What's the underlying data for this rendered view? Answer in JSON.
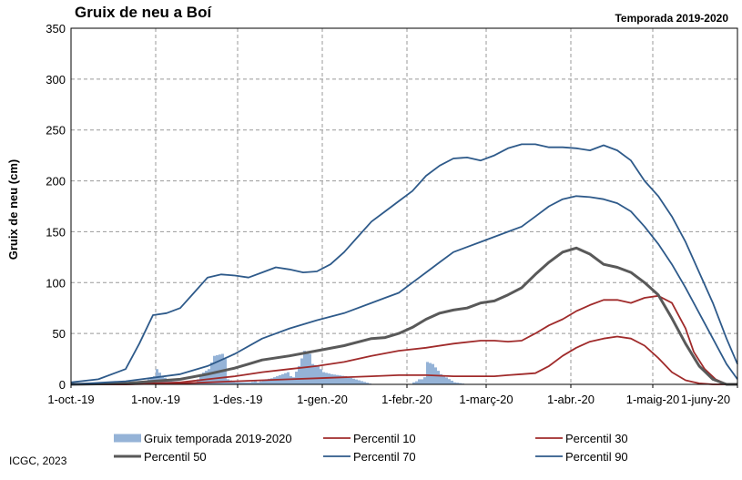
{
  "title": "Gruix de neu a Boí",
  "season": "Temporada 2019-2020",
  "credit": "ICGC, 2023",
  "chart_data": {
    "type": "bar",
    "ylabel": "Gruix de neu (cm)",
    "xlabel": "",
    "ylim": [
      0,
      350
    ],
    "yticks": [
      0,
      50,
      100,
      150,
      200,
      250,
      300,
      350
    ],
    "xlim": [
      0,
      244
    ],
    "xticks": [
      {
        "day": 0,
        "label": "1-oct.-19"
      },
      {
        "day": 31,
        "label": "1-nov.-19"
      },
      {
        "day": 61,
        "label": "1-des.-19"
      },
      {
        "day": 92,
        "label": "1-gen.-20"
      },
      {
        "day": 123,
        "label": "1-febr.-20"
      },
      {
        "day": 152,
        "label": "1-març-20"
      },
      {
        "day": 183,
        "label": "1-abr.-20"
      },
      {
        "day": 213,
        "label": "1-maig-20"
      },
      {
        "day": 244,
        "label": "1-juny-20"
      }
    ],
    "grid": true,
    "legend_position": "bottom",
    "bar_color": "#95b3d7",
    "snow_depth": {
      "name": "Gruix temporada 2019-2020",
      "x": [
        0,
        5,
        10,
        15,
        18,
        19,
        20,
        21,
        22,
        24,
        26,
        28,
        30,
        31,
        33,
        35,
        37,
        39,
        41,
        42,
        43,
        45,
        46,
        47,
        50,
        52,
        55,
        56,
        57,
        60,
        62,
        65,
        67,
        68,
        69,
        70,
        71,
        73,
        75,
        77,
        79,
        80,
        81,
        83,
        85,
        87,
        88,
        90,
        92,
        95,
        100,
        105,
        110,
        115,
        119,
        120,
        121,
        122,
        123,
        124,
        125,
        126,
        127,
        128,
        129,
        130,
        132,
        135,
        140,
        145,
        148,
        150,
        152,
        155,
        160,
        165,
        168,
        170,
        173,
        174,
        175,
        176,
        177,
        178,
        179,
        180,
        181,
        182,
        183,
        185,
        186,
        187,
        188,
        190,
        191,
        192,
        193,
        194,
        195,
        196,
        197,
        198,
        199,
        200,
        202,
        205,
        207,
        208,
        210,
        212,
        214,
        216,
        218,
        220,
        222,
        225,
        226,
        228,
        229,
        230,
        231,
        232,
        233,
        234,
        235,
        236,
        237,
        238,
        239,
        240,
        241,
        242,
        243,
        244
      ],
      "values": [
        0,
        0,
        0,
        0,
        2,
        3,
        2,
        1,
        0,
        0,
        1,
        5,
        8,
        15,
        8,
        5,
        3,
        3,
        1,
        2,
        1,
        2,
        5,
        10,
        15,
        28,
        30,
        25,
        5,
        2,
        2,
        2,
        3,
        2,
        3,
        4,
        5,
        6,
        8,
        10,
        12,
        8,
        7,
        18,
        33,
        30,
        20,
        18,
        12,
        10,
        8,
        4,
        0,
        0,
        0,
        0,
        0,
        0,
        0,
        0,
        2,
        3,
        5,
        5,
        7,
        22,
        20,
        10,
        2,
        0,
        0,
        0,
        0,
        0,
        0,
        0,
        0,
        0,
        0,
        0,
        0,
        0,
        0,
        0,
        0,
        0,
        0,
        0,
        0,
        0,
        0,
        0,
        0,
        0,
        0,
        0,
        0,
        0,
        0,
        0,
        0,
        0,
        0,
        0,
        0,
        0,
        0,
        0,
        0,
        0,
        0,
        0,
        0,
        0,
        0,
        0,
        0,
        0,
        0,
        0,
        0,
        0,
        0,
        0,
        0,
        0,
        0,
        0,
        0,
        0,
        0,
        0,
        0,
        0
      ]
    },
    "series": [
      {
        "name": "Percentil 10",
        "color": "#a02b2b",
        "width": 1.8,
        "x": [
          0,
          20,
          40,
          50,
          60,
          70,
          80,
          90,
          100,
          110,
          120,
          130,
          140,
          150,
          155,
          160,
          165,
          170,
          175,
          180,
          185,
          190,
          195,
          200,
          205,
          210,
          215,
          220,
          225,
          230,
          235,
          240,
          244
        ],
        "values": [
          0,
          0,
          1,
          2,
          3,
          4,
          5,
          6,
          7,
          8,
          9,
          9,
          8,
          8,
          8,
          9,
          10,
          11,
          18,
          28,
          36,
          42,
          45,
          47,
          45,
          38,
          26,
          12,
          4,
          1,
          0,
          0,
          0
        ]
      },
      {
        "name": "Percentil 30",
        "color": "#a02b2b",
        "width": 1.8,
        "x": [
          0,
          20,
          40,
          50,
          60,
          70,
          80,
          90,
          100,
          110,
          120,
          130,
          140,
          150,
          155,
          160,
          165,
          170,
          175,
          180,
          185,
          190,
          195,
          200,
          205,
          210,
          215,
          220,
          225,
          228,
          232,
          236,
          240,
          244
        ],
        "values": [
          0,
          0,
          2,
          5,
          8,
          12,
          15,
          18,
          22,
          28,
          33,
          36,
          40,
          43,
          43,
          42,
          43,
          50,
          58,
          64,
          72,
          78,
          83,
          83,
          80,
          85,
          87,
          80,
          55,
          32,
          15,
          5,
          0,
          0
        ]
      },
      {
        "name": "Percentil 50",
        "color": "#595959",
        "width": 3,
        "x": [
          0,
          20,
          40,
          50,
          60,
          65,
          70,
          80,
          90,
          100,
          110,
          115,
          120,
          125,
          130,
          135,
          140,
          145,
          150,
          155,
          160,
          165,
          170,
          175,
          180,
          185,
          190,
          195,
          200,
          205,
          210,
          215,
          220,
          225,
          230,
          235,
          240,
          244
        ],
        "values": [
          0,
          1,
          5,
          10,
          16,
          20,
          24,
          28,
          33,
          38,
          45,
          46,
          50,
          56,
          64,
          70,
          73,
          75,
          80,
          82,
          88,
          95,
          108,
          120,
          130,
          134,
          128,
          118,
          115,
          110,
          100,
          88,
          65,
          40,
          18,
          5,
          0,
          0
        ]
      },
      {
        "name": "Percentil 70",
        "color": "#2e5a8a",
        "width": 1.8,
        "x": [
          0,
          20,
          40,
          50,
          60,
          70,
          80,
          90,
          100,
          110,
          115,
          120,
          125,
          130,
          135,
          140,
          145,
          150,
          155,
          160,
          165,
          170,
          175,
          180,
          185,
          190,
          195,
          200,
          205,
          210,
          215,
          220,
          225,
          230,
          235,
          240,
          244
        ],
        "values": [
          0,
          3,
          10,
          18,
          30,
          45,
          55,
          63,
          70,
          80,
          85,
          90,
          100,
          110,
          120,
          130,
          135,
          140,
          145,
          150,
          155,
          165,
          175,
          182,
          185,
          184,
          182,
          178,
          170,
          155,
          138,
          118,
          95,
          70,
          45,
          20,
          5
        ]
      },
      {
        "name": "Percentil 90",
        "color": "#2e5a8a",
        "width": 1.8,
        "x": [
          0,
          10,
          20,
          25,
          30,
          35,
          40,
          45,
          50,
          55,
          60,
          65,
          70,
          75,
          80,
          85,
          90,
          95,
          100,
          105,
          110,
          115,
          120,
          125,
          130,
          135,
          140,
          145,
          150,
          155,
          160,
          165,
          170,
          175,
          180,
          185,
          190,
          195,
          200,
          205,
          210,
          215,
          220,
          225,
          230,
          235,
          240,
          244
        ],
        "values": [
          2,
          5,
          15,
          40,
          68,
          70,
          75,
          90,
          105,
          108,
          107,
          105,
          110,
          115,
          113,
          110,
          111,
          118,
          130,
          145,
          160,
          170,
          180,
          190,
          205,
          215,
          222,
          223,
          220,
          225,
          232,
          236,
          236,
          233,
          233,
          232,
          230,
          235,
          230,
          220,
          200,
          185,
          165,
          140,
          110,
          80,
          45,
          20
        ]
      }
    ]
  }
}
